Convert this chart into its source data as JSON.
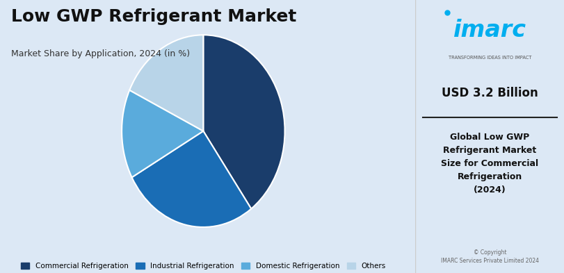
{
  "title": "Low GWP Refrigerant Market",
  "subtitle": "Market Share by Application, 2024 (in %)",
  "slices": [
    {
      "label": "Commercial Refrigeration",
      "value": 40,
      "color": "#1a3d6b"
    },
    {
      "label": "Industrial Refrigeration",
      "value": 27,
      "color": "#1a6db5"
    },
    {
      "label": "Domestic Refrigeration",
      "value": 15,
      "color": "#5aabdc"
    },
    {
      "label": "Others",
      "value": 18,
      "color": "#b8d4e8"
    }
  ],
  "bg_color": "#dce8f5",
  "usd_value": "USD 3.2 Billion",
  "right_desc": "Global Low GWP\nRefrigerant Market\nSize for Commercial\nRefrigeration\n(2024)",
  "copyright": "© Copyright\nIMARC Services Private Limited 2024",
  "imarc_color": "#00aeef",
  "imarc_tagline": "TRANSFORMING IDEAS INTO IMPACT",
  "startangle": 90
}
